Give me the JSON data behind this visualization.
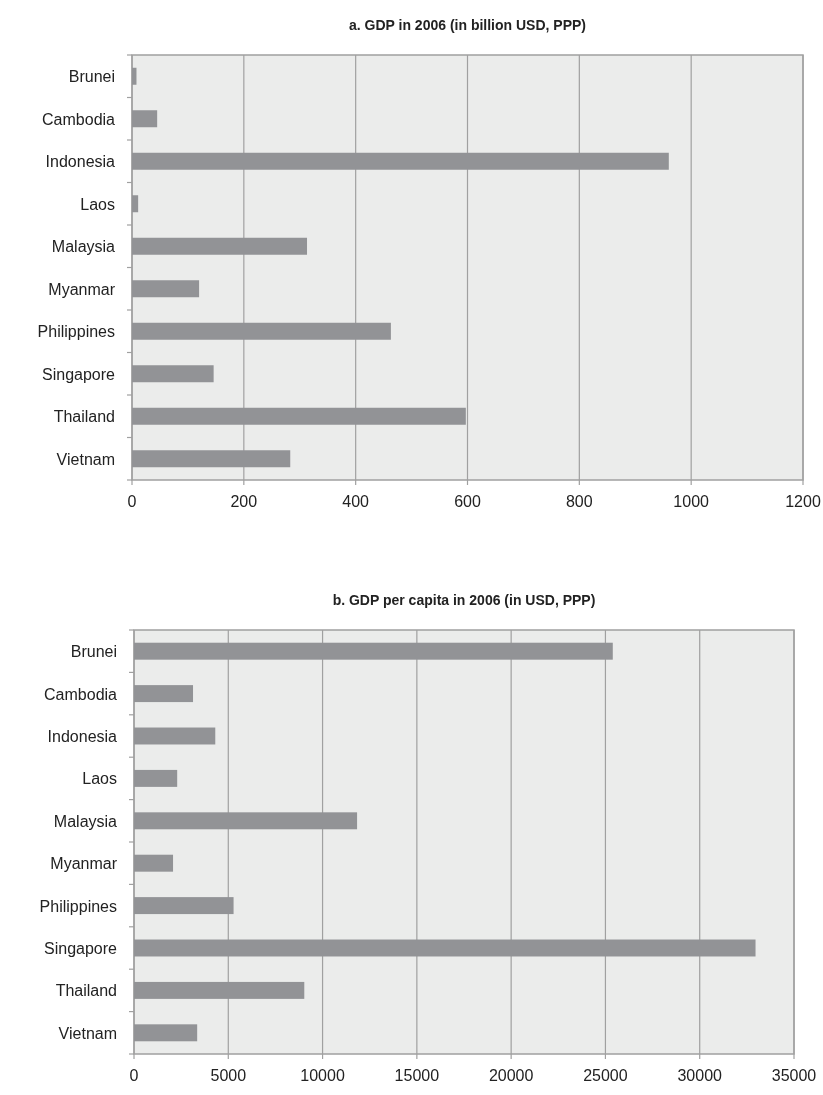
{
  "chart_data": [
    {
      "type": "bar",
      "orientation": "horizontal",
      "title": "a. GDP in 2006 (in billion USD, PPP)",
      "categories": [
        "Brunei",
        "Cambodia",
        "Indonesia",
        "Laos",
        "Malaysia",
        "Myanmar",
        "Philippines",
        "Singapore",
        "Thailand",
        "Vietnam"
      ],
      "values": [
        8,
        45,
        960,
        11,
        313,
        120,
        463,
        146,
        597,
        283
      ],
      "color": "#929396",
      "xlim": [
        0,
        1200
      ],
      "xticks": [
        0,
        200,
        400,
        600,
        800,
        1000,
        1200
      ],
      "grid": "x"
    },
    {
      "type": "bar",
      "orientation": "horizontal",
      "title": "b. GDP per capita in 2006 (in USD, PPP)",
      "categories": [
        "Brunei",
        "Cambodia",
        "Indonesia",
        "Laos",
        "Malaysia",
        "Myanmar",
        "Philippines",
        "Singapore",
        "Thailand",
        "Vietnam"
      ],
      "values": [
        25390,
        3130,
        4310,
        2290,
        11830,
        2070,
        5280,
        32960,
        9030,
        3350
      ],
      "color": "#929396",
      "xlim": [
        0,
        35000
      ],
      "xticks": [
        0,
        5000,
        10000,
        15000,
        20000,
        25000,
        30000,
        35000
      ],
      "grid": "x"
    }
  ]
}
